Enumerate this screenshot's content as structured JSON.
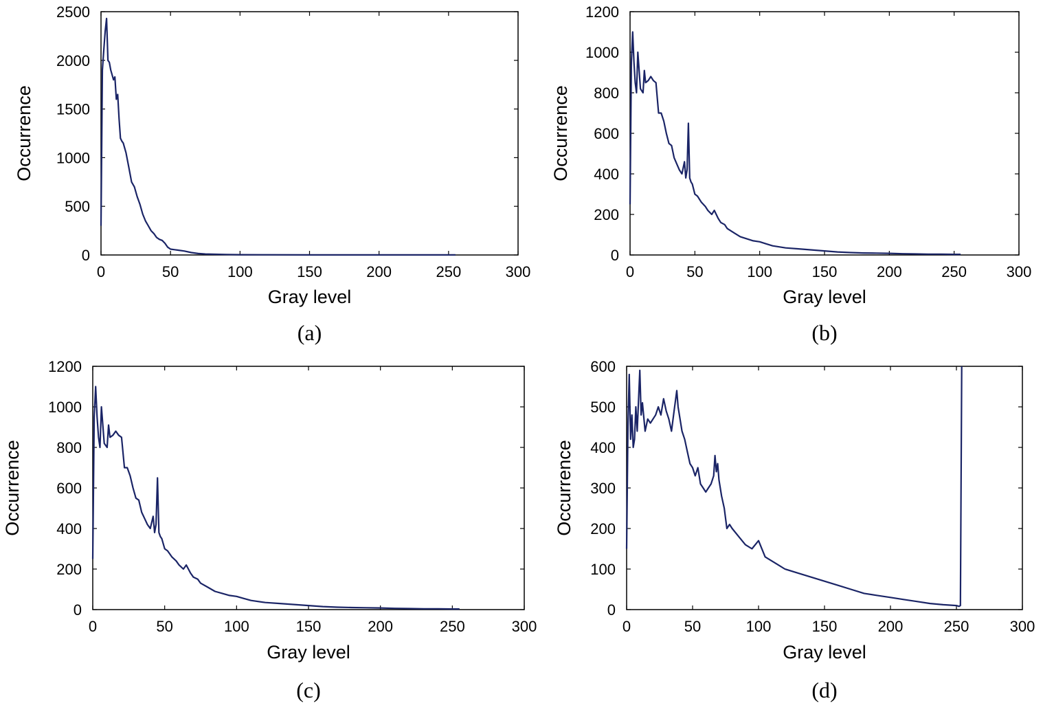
{
  "series_color": "#1a2466",
  "chart_data": [
    {
      "type": "line",
      "label": "(a)",
      "xlabel": "Gray level",
      "ylabel": "Occurrence",
      "xlim": [
        0,
        300
      ],
      "ylim": [
        0,
        2500
      ],
      "xticks": [
        0,
        50,
        100,
        150,
        200,
        250,
        300
      ],
      "yticks": [
        0,
        500,
        1000,
        1500,
        2000,
        2500
      ],
      "x": [
        0,
        1,
        2,
        3,
        4,
        5,
        6,
        7,
        8,
        9,
        10,
        11,
        12,
        13,
        14,
        15,
        16,
        18,
        20,
        22,
        24,
        26,
        28,
        30,
        32,
        34,
        36,
        38,
        40,
        42,
        44,
        46,
        48,
        50,
        55,
        60,
        65,
        70,
        75,
        80,
        90,
        100,
        120,
        150,
        200,
        255
      ],
      "y": [
        300,
        1900,
        2100,
        2300,
        2430,
        2000,
        1980,
        1900,
        1850,
        1800,
        1830,
        1600,
        1650,
        1400,
        1200,
        1170,
        1150,
        1050,
        900,
        750,
        700,
        600,
        520,
        420,
        350,
        300,
        250,
        220,
        180,
        160,
        150,
        120,
        80,
        60,
        50,
        40,
        25,
        15,
        10,
        8,
        5,
        3,
        2,
        1,
        1,
        1
      ]
    },
    {
      "type": "line",
      "label": "(b)",
      "xlabel": "Gray level",
      "ylabel": "Occurrence",
      "xlim": [
        0,
        300
      ],
      "ylim": [
        0,
        1200
      ],
      "xticks": [
        0,
        50,
        100,
        150,
        200,
        250,
        300
      ],
      "yticks": [
        0,
        200,
        400,
        600,
        800,
        1000,
        1200
      ],
      "x": [
        0,
        1,
        2,
        3,
        4,
        5,
        6,
        8,
        10,
        11,
        12,
        14,
        16,
        18,
        20,
        22,
        24,
        26,
        28,
        30,
        32,
        34,
        36,
        38,
        40,
        42,
        43,
        44,
        45,
        46,
        47,
        48,
        50,
        52,
        55,
        58,
        60,
        63,
        65,
        68,
        70,
        73,
        75,
        80,
        85,
        90,
        95,
        100,
        105,
        110,
        120,
        130,
        140,
        150,
        160,
        170,
        180,
        190,
        200,
        210,
        220,
        230,
        240,
        250,
        255
      ],
      "y": [
        250,
        950,
        1100,
        950,
        850,
        800,
        1000,
        820,
        800,
        910,
        850,
        860,
        880,
        860,
        850,
        700,
        700,
        660,
        600,
        550,
        540,
        480,
        450,
        420,
        400,
        460,
        380,
        420,
        650,
        380,
        360,
        350,
        300,
        290,
        260,
        240,
        220,
        200,
        220,
        180,
        160,
        150,
        130,
        110,
        90,
        80,
        70,
        65,
        55,
        45,
        35,
        30,
        25,
        20,
        15,
        12,
        10,
        9,
        8,
        6,
        5,
        4,
        4,
        3,
        3
      ]
    },
    {
      "type": "line",
      "label": "(c)",
      "xlabel": "Gray level",
      "ylabel": "Occurrence",
      "xlim": [
        0,
        300
      ],
      "ylim": [
        0,
        1200
      ],
      "xticks": [
        0,
        50,
        100,
        150,
        200,
        250,
        300
      ],
      "yticks": [
        0,
        200,
        400,
        600,
        800,
        1000,
        1200
      ],
      "x": [
        0,
        1,
        2,
        3,
        4,
        5,
        6,
        8,
        10,
        11,
        12,
        14,
        16,
        18,
        20,
        22,
        24,
        26,
        28,
        30,
        32,
        34,
        36,
        38,
        40,
        42,
        43,
        44,
        45,
        46,
        47,
        48,
        50,
        52,
        55,
        58,
        60,
        63,
        65,
        68,
        70,
        73,
        75,
        80,
        85,
        90,
        95,
        100,
        105,
        110,
        120,
        130,
        140,
        150,
        160,
        170,
        180,
        190,
        200,
        210,
        220,
        230,
        240,
        250,
        255
      ],
      "y": [
        250,
        950,
        1100,
        950,
        850,
        800,
        1000,
        820,
        800,
        910,
        850,
        860,
        880,
        860,
        850,
        700,
        700,
        660,
        600,
        550,
        540,
        480,
        450,
        420,
        400,
        460,
        380,
        420,
        650,
        380,
        360,
        350,
        300,
        290,
        260,
        240,
        220,
        200,
        220,
        180,
        160,
        150,
        130,
        110,
        90,
        80,
        70,
        65,
        55,
        45,
        35,
        30,
        25,
        20,
        15,
        12,
        10,
        9,
        8,
        6,
        5,
        4,
        4,
        3,
        3
      ]
    },
    {
      "type": "line",
      "label": "(d)",
      "xlabel": "Gray level",
      "ylabel": "Occurrence",
      "xlim": [
        0,
        300
      ],
      "ylim": [
        0,
        600
      ],
      "xticks": [
        0,
        50,
        100,
        150,
        200,
        250,
        300
      ],
      "yticks": [
        0,
        100,
        200,
        300,
        400,
        500,
        600
      ],
      "x": [
        0,
        1,
        2,
        3,
        4,
        5,
        6,
        7,
        8,
        10,
        11,
        12,
        14,
        16,
        18,
        20,
        22,
        24,
        26,
        28,
        30,
        32,
        34,
        36,
        38,
        39,
        40,
        42,
        44,
        46,
        48,
        50,
        52,
        54,
        56,
        58,
        60,
        62,
        64,
        66,
        67,
        68,
        69,
        70,
        72,
        74,
        76,
        78,
        80,
        85,
        90,
        95,
        100,
        105,
        110,
        115,
        120,
        130,
        140,
        150,
        160,
        170,
        180,
        190,
        200,
        210,
        220,
        230,
        240,
        250,
        252,
        253,
        254
      ],
      "y": [
        150,
        450,
        580,
        420,
        480,
        400,
        420,
        500,
        440,
        590,
        480,
        510,
        440,
        470,
        460,
        470,
        480,
        500,
        480,
        520,
        490,
        470,
        440,
        490,
        540,
        500,
        480,
        440,
        420,
        390,
        360,
        350,
        330,
        350,
        310,
        300,
        290,
        300,
        310,
        330,
        380,
        340,
        360,
        320,
        280,
        250,
        200,
        210,
        200,
        180,
        160,
        150,
        170,
        130,
        120,
        110,
        100,
        90,
        80,
        70,
        60,
        50,
        40,
        35,
        30,
        25,
        20,
        15,
        12,
        10,
        8,
        10,
        600
      ]
    }
  ]
}
